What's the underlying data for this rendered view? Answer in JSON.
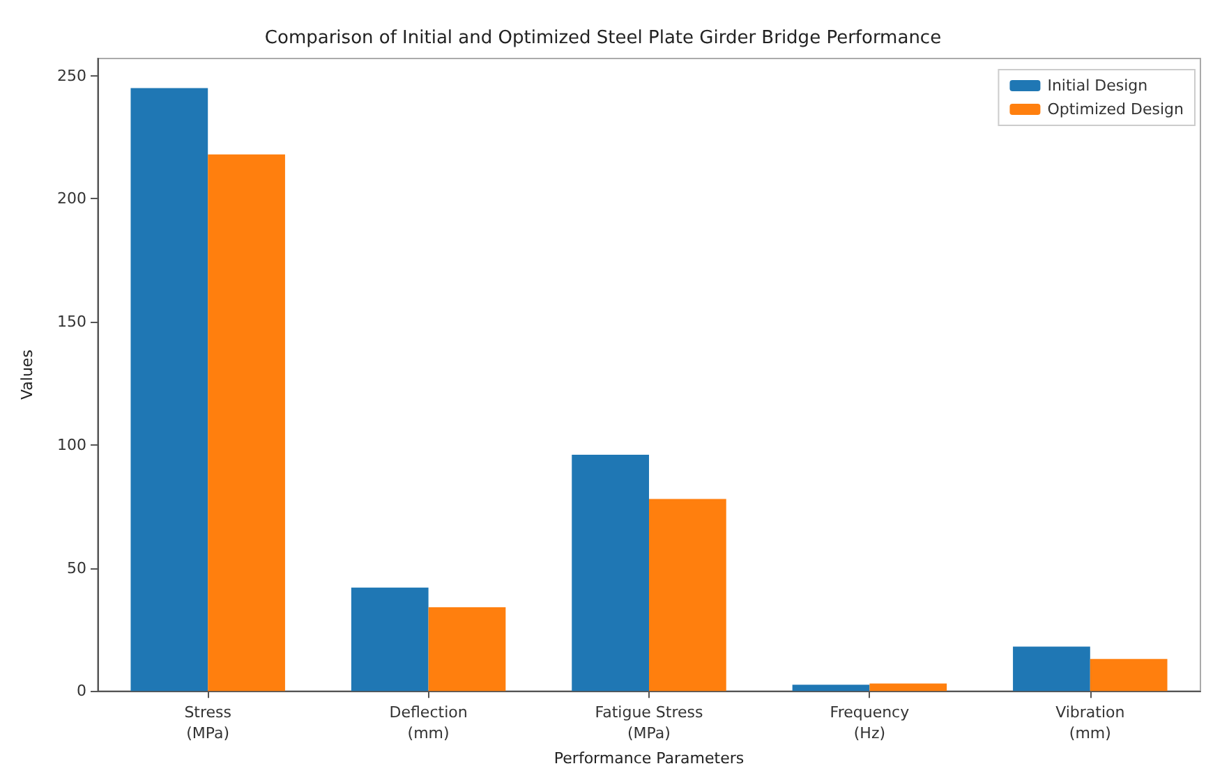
{
  "chart_data": {
    "type": "bar",
    "title": "Comparison of Initial and Optimized Steel Plate Girder Bridge Performance",
    "xlabel": "Performance Parameters",
    "ylabel": "Values",
    "categories": [
      "Stress\n(MPa)",
      "Deflection\n(mm)",
      "Fatigue Stress\n(MPa)",
      "Frequency\n(Hz)",
      "Vibration\n(mm)"
    ],
    "series": [
      {
        "name": "Initial Design",
        "color": "#1f77b4",
        "values": [
          245,
          42,
          96,
          2.5,
          18
        ]
      },
      {
        "name": "Optimized Design",
        "color": "#ff7f0e",
        "values": [
          218,
          34,
          78,
          3,
          13
        ]
      }
    ],
    "ylim": [
      0,
      257
    ],
    "yticks": [
      0,
      50,
      100,
      150,
      200,
      250
    ],
    "grid": false,
    "legend": "top right"
  }
}
